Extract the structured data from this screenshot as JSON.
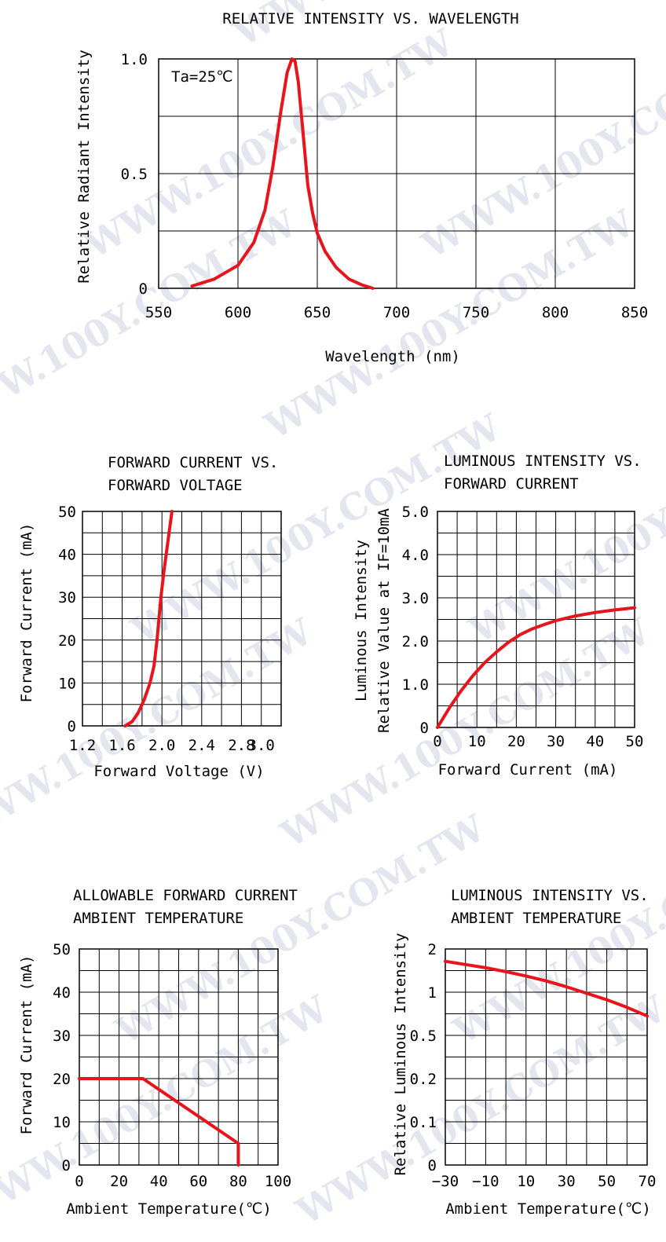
{
  "watermark_text": "WWW.100Y.COM.TW",
  "chart_data": [
    {
      "id": "c1",
      "type": "line",
      "title": [
        "RELATIVE INTENSITY VS. WAVELENGTH"
      ],
      "xlabel": "Wavelength (nm)",
      "ylabel": [
        "Relative Radiant Intensity"
      ],
      "annotation": "Ta=25℃",
      "xlim": [
        550,
        850
      ],
      "ylim": [
        0,
        1.0
      ],
      "x_ticks": [
        550,
        600,
        650,
        700,
        750,
        800,
        850
      ],
      "x_tick_labels": [
        "550",
        "600",
        "650",
        "700",
        "750",
        "800",
        "850"
      ],
      "y_ticks": [
        0,
        0.5,
        1.0
      ],
      "y_tick_labels": [
        "0",
        "0.5",
        "1.0"
      ],
      "x_grid": [
        600,
        650,
        700,
        750,
        800
      ],
      "y_grid": [
        0.25,
        0.5,
        0.75
      ],
      "grid": true,
      "series": [
        {
          "color": "#e8141c",
          "x": [
            571,
            585,
            600,
            610,
            617,
            622,
            627,
            631,
            634,
            636,
            638,
            641,
            644,
            647,
            650,
            655,
            662,
            670,
            678,
            685
          ],
          "y": [
            0.01,
            0.04,
            0.1,
            0.2,
            0.34,
            0.53,
            0.77,
            0.94,
            1.0,
            0.99,
            0.9,
            0.68,
            0.45,
            0.33,
            0.24,
            0.16,
            0.09,
            0.04,
            0.015,
            0.0
          ]
        }
      ]
    },
    {
      "id": "c2",
      "type": "line",
      "title": [
        "FORWARD CURRENT VS.",
        "FORWARD VOLTAGE"
      ],
      "xlabel": "Forward Voltage (V)",
      "ylabel": [
        "Forward Current (mA)"
      ],
      "xlim": [
        1.2,
        3.2
      ],
      "ylim": [
        0,
        50
      ],
      "x_ticks": [
        1.2,
        1.6,
        2.0,
        2.4,
        2.8,
        3.0
      ],
      "x_tick_labels": [
        "1.2",
        "1.6",
        "2.0",
        "2.4",
        "2.8",
        "3.0"
      ],
      "y_ticks": [
        0,
        10,
        20,
        30,
        40,
        50
      ],
      "y_tick_labels": [
        "0",
        "10",
        "20",
        "30",
        "40",
        "50"
      ],
      "x_grid": [
        1.4,
        1.6,
        1.8,
        2.0,
        2.2,
        2.4,
        2.6,
        2.8,
        3.0
      ],
      "y_grid": [
        5,
        10,
        15,
        20,
        25,
        30,
        35,
        40,
        45
      ],
      "grid": true,
      "series": [
        {
          "color": "#e8141c",
          "x": [
            1.63,
            1.7,
            1.76,
            1.82,
            1.88,
            1.92,
            1.95,
            1.97,
            1.99,
            2.02,
            2.06,
            2.1
          ],
          "y": [
            0,
            1,
            3,
            6,
            10,
            14,
            20,
            25,
            30,
            36,
            43,
            50
          ]
        }
      ]
    },
    {
      "id": "c3",
      "type": "line",
      "title": [
        "LUMINOUS INTENSITY VS.",
        "FORWARD CURRENT"
      ],
      "xlabel": "Forward Current (mA)",
      "ylabel": [
        "Luminous Intensity",
        "Relative Value at IF=10mA"
      ],
      "xlim": [
        0,
        50
      ],
      "ylim": [
        0,
        5.0
      ],
      "x_ticks": [
        0,
        10,
        20,
        30,
        40,
        50
      ],
      "x_tick_labels": [
        "0",
        "10",
        "20",
        "30",
        "40",
        "50"
      ],
      "y_ticks": [
        0,
        1.0,
        2.0,
        3.0,
        4.0,
        5.0
      ],
      "y_tick_labels": [
        "0",
        "1.0",
        "2.0",
        "3.0",
        "4.0",
        "5.0"
      ],
      "x_grid": [
        5,
        10,
        15,
        20,
        25,
        30,
        35,
        40,
        45
      ],
      "y_grid": [
        0.5,
        1.0,
        1.5,
        2.0,
        2.5,
        3.0,
        3.5,
        4.0,
        4.5
      ],
      "grid": true,
      "series": [
        {
          "color": "#e8141c",
          "x": [
            0,
            3,
            6,
            9,
            12,
            15,
            18,
            21,
            24,
            27,
            30,
            35,
            40,
            45,
            50
          ],
          "y": [
            0,
            0.45,
            0.85,
            1.2,
            1.5,
            1.75,
            1.97,
            2.15,
            2.28,
            2.38,
            2.47,
            2.58,
            2.66,
            2.72,
            2.77
          ]
        }
      ]
    },
    {
      "id": "c4",
      "type": "line",
      "title": [
        "ALLOWABLE FORWARD CURRENT",
        "AMBIENT TEMPERATURE"
      ],
      "xlabel": "Ambient Temperature(℃)",
      "ylabel": [
        "Forward Current (mA)"
      ],
      "xlim": [
        0,
        100
      ],
      "ylim": [
        0,
        50
      ],
      "x_ticks": [
        0,
        20,
        40,
        60,
        80,
        100
      ],
      "x_tick_labels": [
        "0",
        "20",
        "40",
        "60",
        "80",
        "100"
      ],
      "y_ticks": [
        0,
        10,
        20,
        30,
        40,
        50
      ],
      "y_tick_labels": [
        "0",
        "10",
        "20",
        "30",
        "40",
        "50"
      ],
      "x_grid": [
        10,
        20,
        30,
        40,
        50,
        60,
        70,
        80,
        90
      ],
      "y_grid": [
        5,
        10,
        15,
        20,
        25,
        30,
        35,
        40,
        45
      ],
      "grid": true,
      "series": [
        {
          "color": "#e8141c",
          "x": [
            0,
            32,
            80,
            80
          ],
          "y": [
            20,
            20,
            5,
            0
          ]
        }
      ]
    },
    {
      "id": "c5",
      "type": "line",
      "title": [
        "LUMINOUS INTENSITY VS.",
        "AMBIENT TEMPERATURE"
      ],
      "xlabel": "Ambient Temperature(℃)",
      "ylabel": [
        "Relative Luminous Intensity"
      ],
      "xlim": [
        -30,
        70
      ],
      "ylim": [
        0,
        2
      ],
      "y_scale_note": "nonlinear tick spacing",
      "x_ticks": [
        -30,
        -10,
        10,
        30,
        50,
        70
      ],
      "x_tick_labels": [
        "−30",
        "−10",
        "10",
        "30",
        "50",
        "70"
      ],
      "y_ticks": [
        0,
        0.1,
        0.2,
        0.5,
        1,
        2
      ],
      "y_tick_labels": [
        "0",
        "0.1",
        "0.2",
        "0.5",
        "1",
        "2"
      ],
      "y_tick_positions": [
        0,
        0.2,
        0.4,
        0.6,
        0.8,
        1.0
      ],
      "x_grid": [
        -20,
        -10,
        0,
        10,
        20,
        30,
        40,
        50,
        60
      ],
      "y_grid_positions": [
        0.1,
        0.2,
        0.3,
        0.4,
        0.5,
        0.6,
        0.7,
        0.8,
        0.9
      ],
      "grid": true,
      "series": [
        {
          "color": "#e8141c",
          "x": [
            -30,
            -20,
            -10,
            0,
            10,
            20,
            30,
            40,
            50,
            60,
            70
          ],
          "y_position": [
            0.943,
            0.928,
            0.913,
            0.895,
            0.875,
            0.852,
            0.825,
            0.795,
            0.765,
            0.73,
            0.69
          ]
        }
      ]
    }
  ]
}
